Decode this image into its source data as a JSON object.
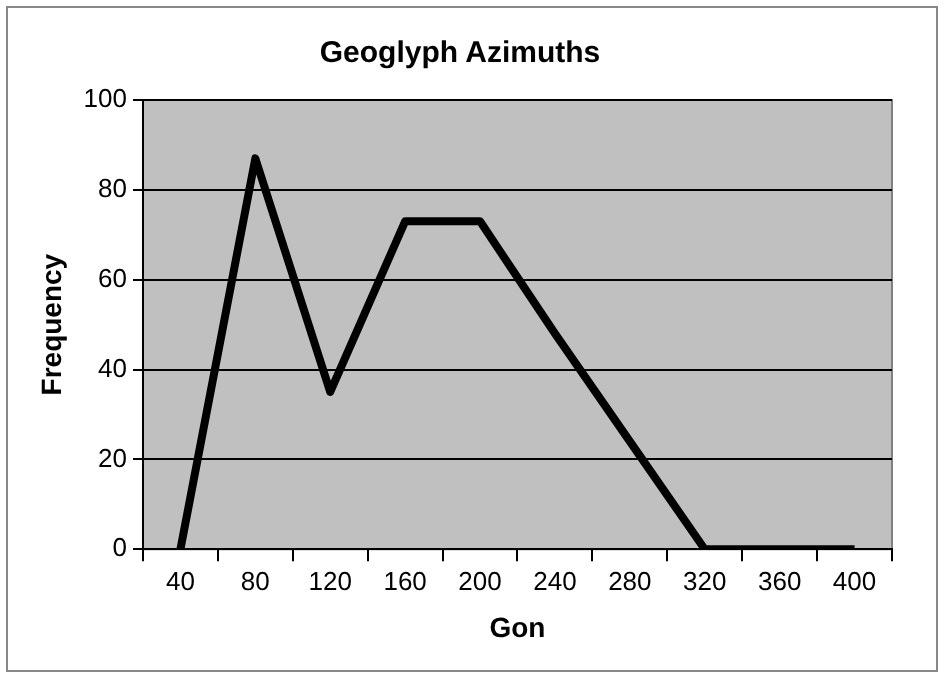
{
  "chart_data": {
    "type": "line",
    "title": "Geoglyph Azimuths",
    "xlabel": "Gon",
    "ylabel": "Frequency",
    "categories": [
      "40",
      "80",
      "120",
      "160",
      "200",
      "240",
      "280",
      "320",
      "360",
      "400"
    ],
    "series": [
      {
        "color": "#000000",
        "values": [
          0,
          87,
          35,
          73,
          73,
          48,
          24,
          0,
          0,
          0
        ]
      }
    ],
    "ylim": [
      0,
      100
    ],
    "yticks": [
      0,
      20,
      40,
      60,
      80,
      100
    ],
    "grid": "y",
    "legend": false,
    "marker": "none",
    "line_style": "solid"
  }
}
